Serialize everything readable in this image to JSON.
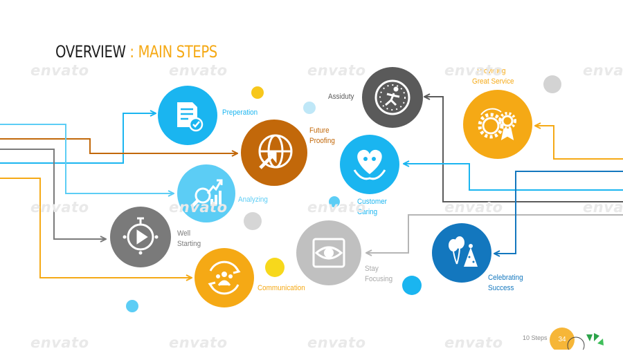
{
  "title": {
    "main": "OVERVIEW",
    "separator": " : ",
    "sub": "MAIN STEPS"
  },
  "steps": [
    {
      "id": "preperation",
      "lines": [
        "Preperation"
      ],
      "color": "#1ab5f0",
      "icon": "document-check-icon"
    },
    {
      "id": "future-proofing",
      "lines": [
        "Future",
        "Proofing"
      ],
      "color": "#c2680a",
      "icon": "globe-arrow-icon"
    },
    {
      "id": "analyzing",
      "lines": [
        "Analyzing"
      ],
      "color": "#5ccdf5",
      "icon": "chart-magnifier-icon"
    },
    {
      "id": "well-starting",
      "lines": [
        "Well",
        "Starting"
      ],
      "color": "#7a7a7a",
      "icon": "timer-play-icon"
    },
    {
      "id": "communication",
      "lines": [
        "Communication"
      ],
      "color": "#f5a915",
      "icon": "people-cycle-icon"
    },
    {
      "id": "assiduty",
      "lines": [
        "Assiduty"
      ],
      "color": "#5a5a5a",
      "icon": "stopwatch-runner-icon"
    },
    {
      "id": "customer-caring",
      "lines": [
        "Customer",
        "Caring"
      ],
      "color": "#1ab5f0",
      "icon": "heart-hands-icon"
    },
    {
      "id": "stay-focusing",
      "lines": [
        "Stay",
        "Focusing"
      ],
      "color": "#c0c0c0",
      "icon": "eye-focus-icon"
    },
    {
      "id": "providing-service",
      "lines": [
        "Providing",
        "Great Service"
      ],
      "color": "#f5a915",
      "icon": "gears-award-icon"
    },
    {
      "id": "celebrating",
      "lines": [
        "Celebrating",
        "Success"
      ],
      "color": "#1377be",
      "icon": "balloons-party-hat-icon"
    }
  ],
  "watermark": "envato",
  "footer": {
    "label": "10 Steps",
    "page": "34"
  },
  "colors": {
    "orange": "#f5a915",
    "brown": "#c2680a",
    "blue": "#1ab5f0",
    "light_blue": "#5ccdf5",
    "navy": "#1377be",
    "gray": "#7a7a7a",
    "dark_gray": "#5a5a5a",
    "light_gray": "#c0c0c0",
    "brand_green": "#2ca34a"
  }
}
